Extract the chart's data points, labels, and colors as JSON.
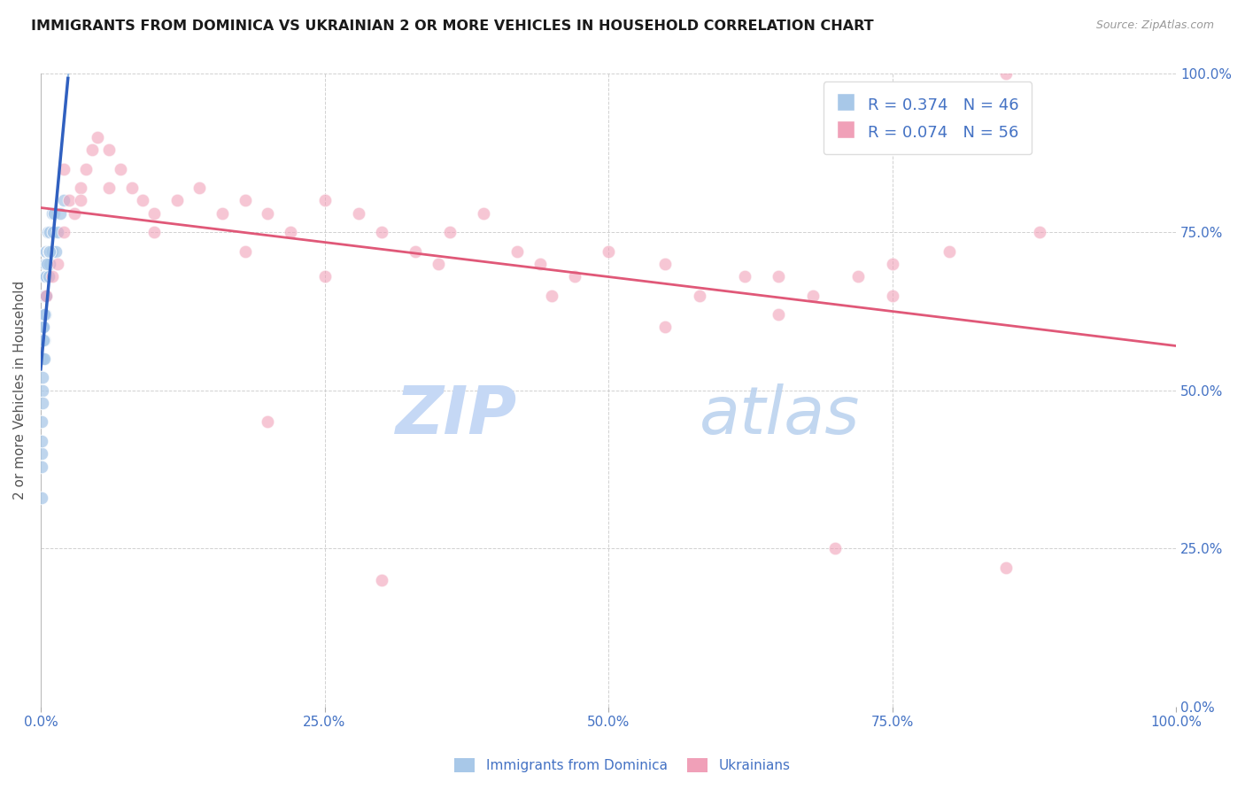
{
  "title": "IMMIGRANTS FROM DOMINICA VS UKRAINIAN 2 OR MORE VEHICLES IN HOUSEHOLD CORRELATION CHART",
  "source": "Source: ZipAtlas.com",
  "ylabel": "2 or more Vehicles in Household",
  "ytick_values": [
    0,
    25,
    50,
    75,
    100
  ],
  "xtick_values": [
    0,
    25,
    50,
    75,
    100
  ],
  "dominica_R": 0.374,
  "dominica_N": 46,
  "ukrainian_R": 0.074,
  "ukrainian_N": 56,
  "dominica_dot_color": "#a8c8e8",
  "ukrainian_dot_color": "#f0a0b8",
  "trend_dominica_color": "#3060c0",
  "trend_dominica_dash_color": "#90b8e0",
  "trend_ukrainian_color": "#e05878",
  "watermark_zip_color": "#c0d4f0",
  "watermark_atlas_color": "#a8c8e8",
  "background_color": "#ffffff",
  "grid_color": "#cccccc",
  "title_color": "#1a1a1a",
  "axis_tick_color": "#4472c4",
  "legend_box_dominica": "#a8c8e8",
  "legend_box_ukrainian": "#f0a0b8",
  "dominica_x": [
    0.05,
    0.1,
    0.1,
    0.1,
    0.15,
    0.15,
    0.2,
    0.2,
    0.2,
    0.25,
    0.25,
    0.3,
    0.3,
    0.3,
    0.35,
    0.35,
    0.4,
    0.4,
    0.4,
    0.45,
    0.45,
    0.5,
    0.5,
    0.6,
    0.6,
    0.7,
    0.7,
    0.8,
    0.8,
    0.9,
    1.0,
    1.0,
    1.1,
    1.2,
    1.3,
    1.5,
    1.7,
    2.0,
    0.05,
    0.08,
    0.12,
    0.18,
    0.22,
    0.28,
    0.55,
    0.75
  ],
  "dominica_y": [
    33,
    40,
    45,
    55,
    50,
    60,
    55,
    60,
    65,
    60,
    65,
    58,
    62,
    68,
    55,
    65,
    62,
    68,
    70,
    65,
    72,
    68,
    72,
    70,
    75,
    68,
    72,
    70,
    75,
    72,
    78,
    72,
    75,
    78,
    72,
    75,
    78,
    80,
    38,
    42,
    48,
    52,
    58,
    62,
    70,
    72
  ],
  "ukrainian_x": [
    0.5,
    1.0,
    1.5,
    2.0,
    2.5,
    3.0,
    3.5,
    4.0,
    4.5,
    5.0,
    6.0,
    7.0,
    8.0,
    9.0,
    10.0,
    12.0,
    14.0,
    16.0,
    18.0,
    20.0,
    22.0,
    25.0,
    28.0,
    30.0,
    33.0,
    36.0,
    39.0,
    42.0,
    44.0,
    47.0,
    50.0,
    55.0,
    58.0,
    62.0,
    65.0,
    68.0,
    72.0,
    75.0,
    80.0,
    85.0,
    88.0,
    2.0,
    3.5,
    6.0,
    10.0,
    18.0,
    25.0,
    35.0,
    45.0,
    55.0,
    65.0,
    75.0,
    85.0,
    20.0,
    30.0,
    70.0
  ],
  "ukrainian_y": [
    65,
    68,
    70,
    75,
    80,
    78,
    82,
    85,
    88,
    90,
    88,
    85,
    82,
    80,
    78,
    80,
    82,
    78,
    80,
    78,
    75,
    80,
    78,
    75,
    72,
    75,
    78,
    72,
    70,
    68,
    72,
    70,
    65,
    68,
    62,
    65,
    68,
    70,
    72,
    100,
    75,
    85,
    80,
    82,
    75,
    72,
    68,
    70,
    65,
    60,
    68,
    65,
    22,
    45,
    20,
    25
  ]
}
